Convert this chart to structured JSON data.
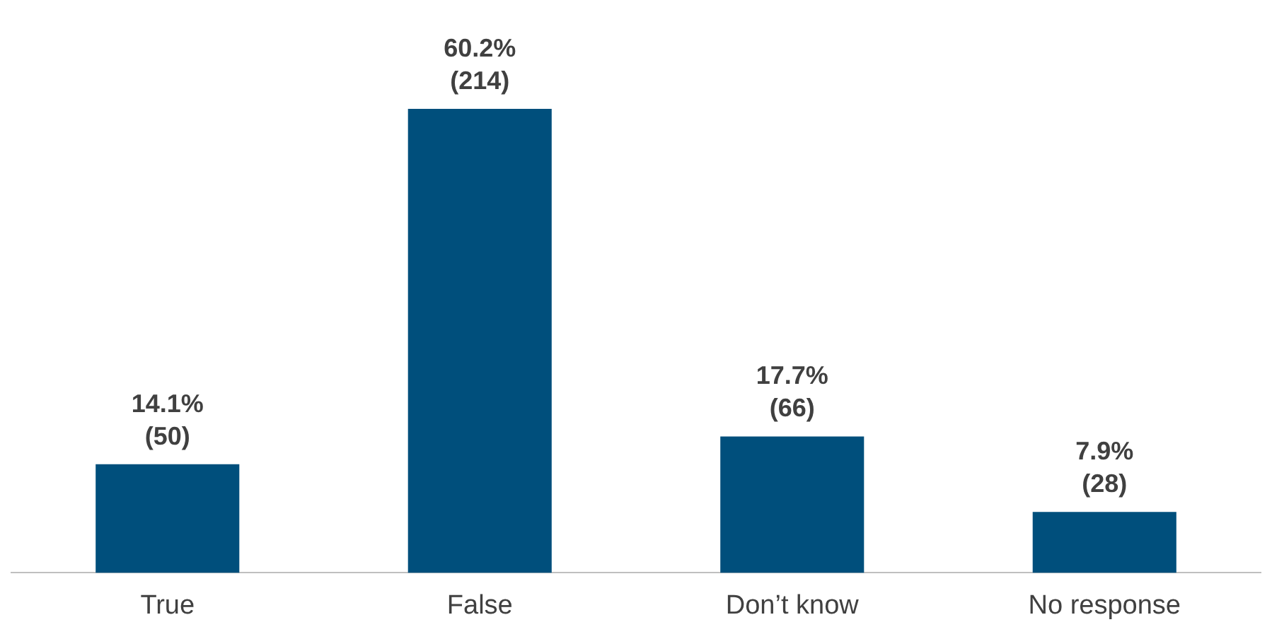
{
  "chart_data": {
    "type": "bar",
    "categories": [
      "True",
      "False",
      "Don’t know",
      "No response"
    ],
    "values": [
      14.1,
      60.2,
      17.7,
      7.9
    ],
    "color": "#004f7c",
    "value_labels": [
      "14.1%\n(50)",
      "60.2%\n(214)",
      "17.7%\n(66)",
      "7.9%\n(28)"
    ],
    "grid": false,
    "legend": false
  }
}
